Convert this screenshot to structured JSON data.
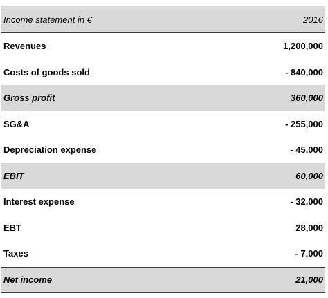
{
  "header": {
    "label": "Income statement in €",
    "year": "2016"
  },
  "rows": [
    {
      "label": "Revenues",
      "value": "1,200,000"
    },
    {
      "label": "Costs of goods sold",
      "value": "- 840,000"
    },
    {
      "label": "Gross profit",
      "value": "360,000"
    },
    {
      "label": "SG&A",
      "value": "- 255,000"
    },
    {
      "label": "Depreciation expense",
      "value": "- 45,000"
    },
    {
      "label": "EBIT",
      "value": "60,000"
    },
    {
      "label": "Interest expense",
      "value": "- 32,000"
    },
    {
      "label": "EBT",
      "value": "28,000"
    },
    {
      "label": "Taxes",
      "value": "- 7,000"
    },
    {
      "label": "Net income",
      "value": "21,000"
    }
  ],
  "colors": {
    "shade": "#d9d9d9",
    "rule": "#3a3a3a"
  }
}
